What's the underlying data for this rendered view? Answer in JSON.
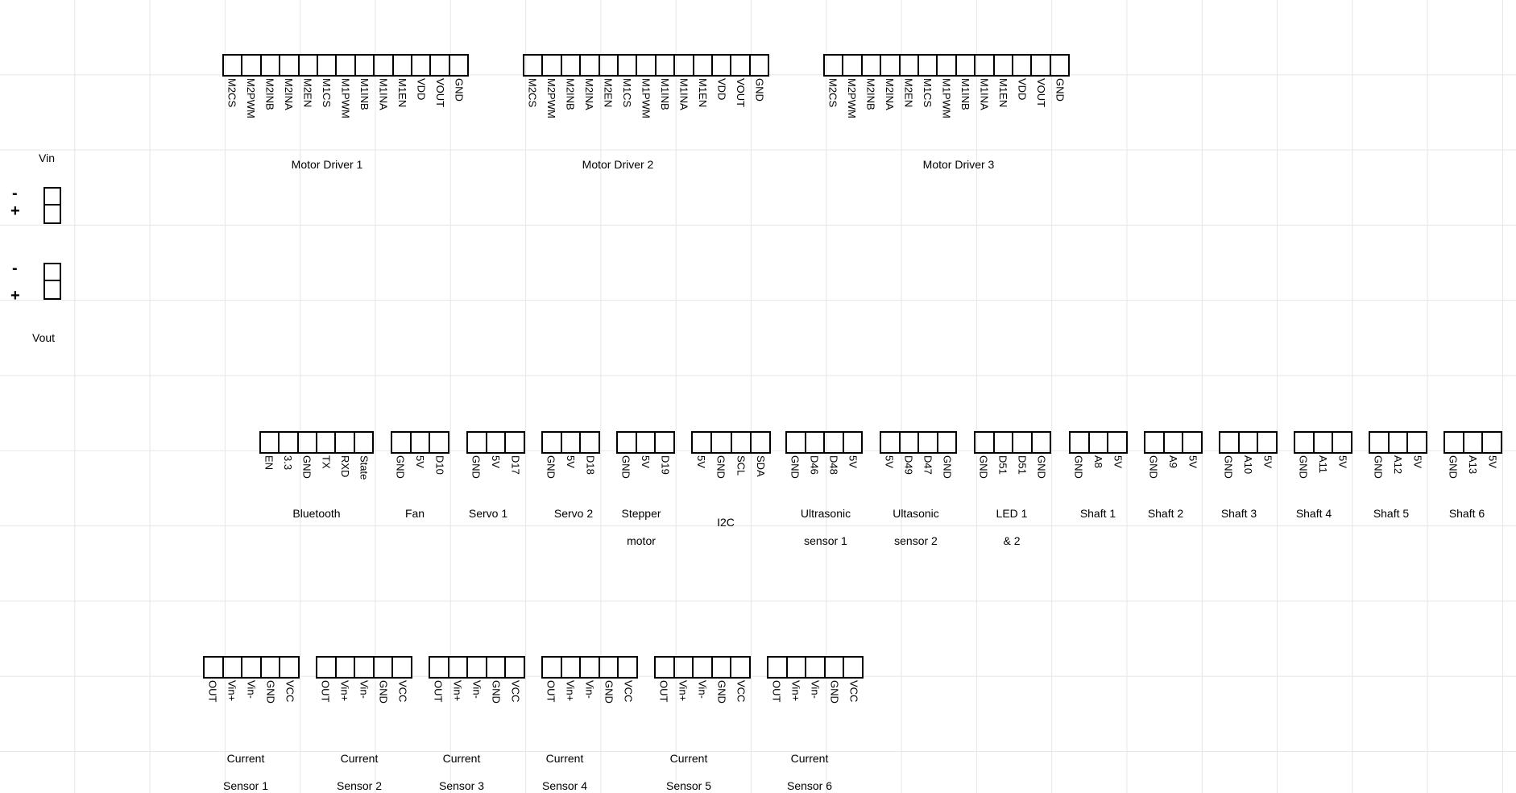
{
  "power": {
    "vin_label": "Vin",
    "vout_label": "Vout",
    "minus": "-",
    "plus": "+"
  },
  "connectors": [
    {
      "id": "motor-driver-1",
      "title": [
        "Motor Driver 1"
      ],
      "pins": [
        "M2CS",
        "M2PWM",
        "M2INB",
        "M2INA",
        "M2EN",
        "M1CS",
        "M1PWM",
        "M1INB",
        "M1INA",
        "M1EN",
        "VDD",
        "VOUT",
        "GND"
      ]
    },
    {
      "id": "motor-driver-2",
      "title": [
        "Motor Driver 2"
      ],
      "pins": [
        "M2CS",
        "M2PWM",
        "M2INB",
        "M2INA",
        "M2EN",
        "M1CS",
        "M1PWM",
        "M1INB",
        "M1INA",
        "M1EN",
        "VDD",
        "VOUT",
        "GND"
      ]
    },
    {
      "id": "motor-driver-3",
      "title": [
        "Motor Driver 3"
      ],
      "pins": [
        "M2CS",
        "M2PWM",
        "M2INB",
        "M2INA",
        "M2EN",
        "M1CS",
        "M1PWM",
        "M1INB",
        "M1INA",
        "M1EN",
        "VDD",
        "VOUT",
        "GND"
      ]
    },
    {
      "id": "bluetooth",
      "title": [
        "Bluetooth"
      ],
      "pins": [
        "EN",
        "3.3",
        "GND",
        "TX",
        "RXD",
        "State"
      ]
    },
    {
      "id": "fan",
      "title": [
        "Fan"
      ],
      "pins": [
        "GND",
        "5V",
        "D10"
      ]
    },
    {
      "id": "servo-1",
      "title": [
        "Servo 1"
      ],
      "pins": [
        "GND",
        "5V",
        "D17"
      ]
    },
    {
      "id": "servo-2",
      "title": [
        "Servo 2"
      ],
      "pins": [
        "GND",
        "5V",
        "D18"
      ]
    },
    {
      "id": "stepper-motor",
      "title": [
        "Stepper",
        "motor"
      ],
      "pins": [
        "GND",
        "5V",
        "D19"
      ]
    },
    {
      "id": "i2c",
      "title": [
        "I2C"
      ],
      "pins": [
        "5V",
        "GND",
        "SCL",
        "SDA"
      ]
    },
    {
      "id": "ultrasonic-sensor-1",
      "title": [
        "Ultrasonic",
        "sensor 1"
      ],
      "pins": [
        "GND",
        "D46",
        "D48",
        "5V"
      ]
    },
    {
      "id": "ultrasonic-sensor-2",
      "title": [
        "Ultasonic",
        "sensor 2"
      ],
      "pins": [
        "5V",
        "D49",
        "D47",
        "GND"
      ]
    },
    {
      "id": "led-1-2",
      "title": [
        "LED 1",
        "& 2"
      ],
      "pins": [
        "GND",
        "D51",
        "D51",
        "GND"
      ]
    },
    {
      "id": "shaft-1",
      "title": [
        "Shaft 1"
      ],
      "pins": [
        "GND",
        "A8",
        "5V"
      ]
    },
    {
      "id": "shaft-2",
      "title": [
        "Shaft 2"
      ],
      "pins": [
        "GND",
        "A9",
        "5V"
      ]
    },
    {
      "id": "shaft-3",
      "title": [
        "Shaft 3"
      ],
      "pins": [
        "GND",
        "A10",
        "5V"
      ]
    },
    {
      "id": "shaft-4",
      "title": [
        "Shaft 4"
      ],
      "pins": [
        "GND",
        "A11",
        "5V"
      ]
    },
    {
      "id": "shaft-5",
      "title": [
        "Shaft 5"
      ],
      "pins": [
        "GND",
        "A12",
        "5V"
      ]
    },
    {
      "id": "shaft-6",
      "title": [
        "Shaft 6"
      ],
      "pins": [
        "GND",
        "A13",
        "5V"
      ]
    },
    {
      "id": "current-sensor-1",
      "title": [
        "Current",
        "Sensor 1"
      ],
      "pins": [
        "OUT",
        "Vin+",
        "Vin-",
        "GND",
        "VCC"
      ]
    },
    {
      "id": "current-sensor-2",
      "title": [
        "Current",
        "Sensor 2"
      ],
      "pins": [
        "OUT",
        "Vin+",
        "Vin-",
        "GND",
        "VCC"
      ]
    },
    {
      "id": "current-sensor-3",
      "title": [
        "Current",
        "Sensor 3"
      ],
      "pins": [
        "OUT",
        "Vin+",
        "Vin-",
        "GND",
        "VCC"
      ]
    },
    {
      "id": "current-sensor-4",
      "title": [
        "Current",
        "Sensor 4"
      ],
      "pins": [
        "OUT",
        "Vin+",
        "Vin-",
        "GND",
        "VCC"
      ]
    },
    {
      "id": "current-sensor-5",
      "title": [
        "Current",
        "Sensor 5"
      ],
      "pins": [
        "OUT",
        "Vin+",
        "Vin-",
        "GND",
        "VCC"
      ]
    },
    {
      "id": "current-sensor-6",
      "title": [
        "Current",
        "Sensor 6"
      ],
      "pins": [
        "OUT",
        "Vin+",
        "Vin-",
        "GND",
        "VCC"
      ]
    }
  ]
}
